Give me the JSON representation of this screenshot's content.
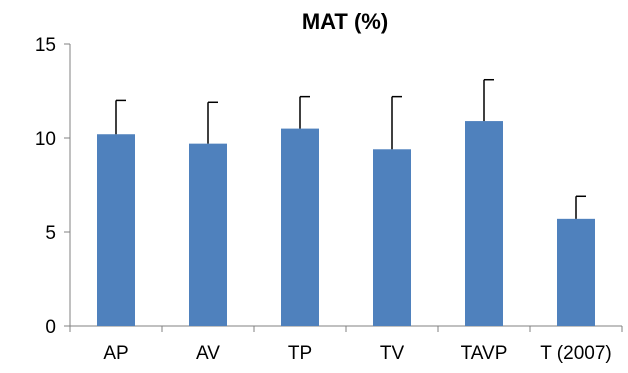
{
  "chart_data": {
    "type": "bar",
    "title": "MAT (%)",
    "xlabel": "",
    "ylabel": "",
    "categories": [
      "AP",
      "AV",
      "TP",
      "TV",
      "TAVP",
      "T (2007)"
    ],
    "values": [
      10.2,
      9.7,
      10.5,
      9.4,
      10.9,
      5.7
    ],
    "error_upper": [
      1.8,
      2.2,
      1.7,
      2.8,
      2.2,
      1.2
    ],
    "ylim": [
      0,
      15
    ],
    "yticks": [
      0,
      5,
      10,
      15
    ],
    "ytick_labels": [
      "0",
      "5",
      "10",
      "15"
    ],
    "grid": false,
    "legend": "none",
    "colors": {
      "bar": "#4f81bd",
      "error": "#000000",
      "axis": "#808080"
    }
  }
}
